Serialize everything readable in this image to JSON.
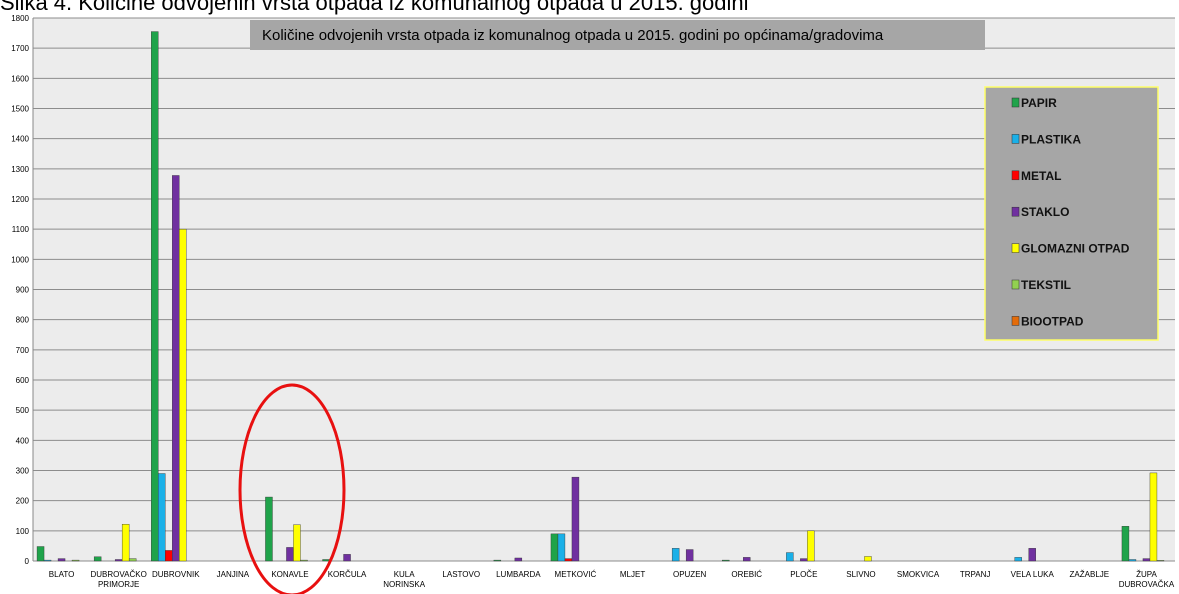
{
  "caption": "Slika 4. Količine odvojenih vrsta otpada iz komunalnog otpada u 2015. godini",
  "chart_data": {
    "type": "bar",
    "title": "Količine odvojenih  vrsta otpada iz komunalnog otpada u 2015. godini po općinama/gradovima",
    "categories": [
      "BLATO",
      "DUBROVAČKO\nPRIMORJE",
      "DUBROVNIK",
      "JANJINA",
      "KONAVLE",
      "KORČULA",
      "KULA\nNORINSKA",
      "LASTOVO",
      "LUMBARDA",
      "METKOVIĆ",
      "MLJET",
      "OPUZEN",
      "OREBIĆ",
      "PLOČE",
      "SLIVNO",
      "SMOKVICA",
      "TRPANJ",
      "VELA LUKA",
      "ZAŽABLJE",
      "ŽUPA\nDUBROVAČKA"
    ],
    "series": [
      {
        "name": "PAPIR",
        "color": "#1fa34a",
        "values": [
          48,
          14,
          1755,
          0,
          212,
          5,
          0,
          0,
          3,
          90,
          0,
          0,
          3,
          0,
          0,
          0,
          0,
          0,
          0,
          115
        ]
      },
      {
        "name": "PLASTIKA",
        "color": "#1ab0e8",
        "values": [
          3,
          0,
          290,
          0,
          0,
          0,
          0,
          0,
          0,
          90,
          0,
          42,
          0,
          28,
          0,
          0,
          0,
          12,
          0,
          5
        ]
      },
      {
        "name": "METAL",
        "color": "#ff0000",
        "values": [
          0,
          0,
          35,
          0,
          0,
          0,
          0,
          0,
          0,
          8,
          0,
          0,
          0,
          0,
          0,
          0,
          0,
          0,
          0,
          0
        ]
      },
      {
        "name": "STAKLO",
        "color": "#7030a0",
        "values": [
          8,
          5,
          1278,
          0,
          45,
          22,
          0,
          0,
          10,
          278,
          0,
          38,
          12,
          8,
          0,
          0,
          0,
          42,
          0,
          8
        ]
      },
      {
        "name": "GLOMAZNI OTPAD",
        "color": "#ffff00",
        "values": [
          0,
          122,
          1100,
          0,
          120,
          0,
          0,
          0,
          0,
          0,
          0,
          0,
          0,
          100,
          15,
          0,
          0,
          0,
          0,
          292
        ]
      },
      {
        "name": "TEKSTIL",
        "color": "#92d050",
        "values": [
          3,
          8,
          0,
          0,
          3,
          0,
          0,
          0,
          0,
          0,
          0,
          0,
          0,
          0,
          0,
          0,
          0,
          0,
          0,
          2
        ]
      },
      {
        "name": "BIOOTPAD",
        "color": "#e46c0a",
        "values": [
          0,
          0,
          0,
          0,
          0,
          0,
          0,
          0,
          0,
          0,
          0,
          0,
          0,
          0,
          0,
          0,
          0,
          0,
          0,
          0
        ]
      }
    ],
    "ylim": [
      0,
      1800
    ],
    "yticks": [
      0,
      100,
      200,
      300,
      400,
      500,
      600,
      700,
      800,
      900,
      1000,
      1100,
      1200,
      1300,
      1400,
      1500,
      1600,
      1700,
      1800
    ],
    "grid": true,
    "legend": "upper right"
  }
}
